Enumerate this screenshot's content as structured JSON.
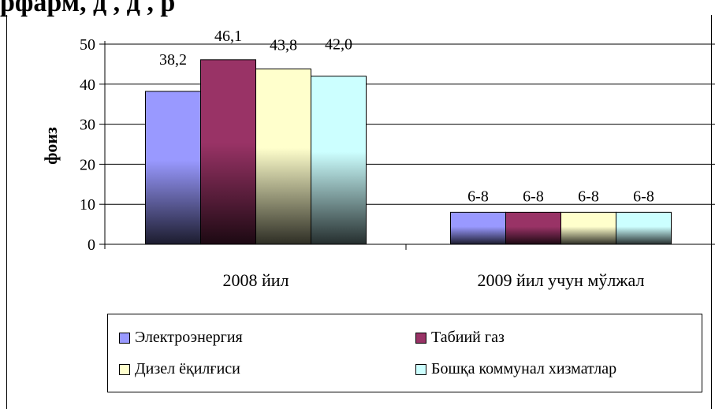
{
  "title_fragment": "рфарм, д , д , р",
  "chart_data": {
    "type": "bar",
    "categories": [
      "2008 йил",
      "2009 йил учун мўлжал"
    ],
    "ylabel": "фоиз",
    "ylim": [
      0,
      50
    ],
    "yticks": [
      0,
      10,
      20,
      30,
      40,
      50
    ],
    "grid": true,
    "legend_position": "bottom",
    "series": [
      {
        "name": "Электроэнергия",
        "values": [
          38.2,
          8
        ],
        "labels": [
          "38,2",
          "6-8"
        ],
        "color": "#9999ff"
      },
      {
        "name": "Табиий газ",
        "values": [
          46.1,
          8
        ],
        "labels": [
          "46,1",
          "6-8"
        ],
        "color": "#993366"
      },
      {
        "name": "Дизел ёқилғиси",
        "values": [
          43.8,
          8
        ],
        "labels": [
          "43,8",
          "6-8"
        ],
        "color": "#ffffcc"
      },
      {
        "name": "Бошқа коммунал хизматлар",
        "values": [
          42.0,
          8
        ],
        "labels": [
          "42,0",
          "6-8"
        ],
        "color": "#ccffff"
      }
    ]
  }
}
